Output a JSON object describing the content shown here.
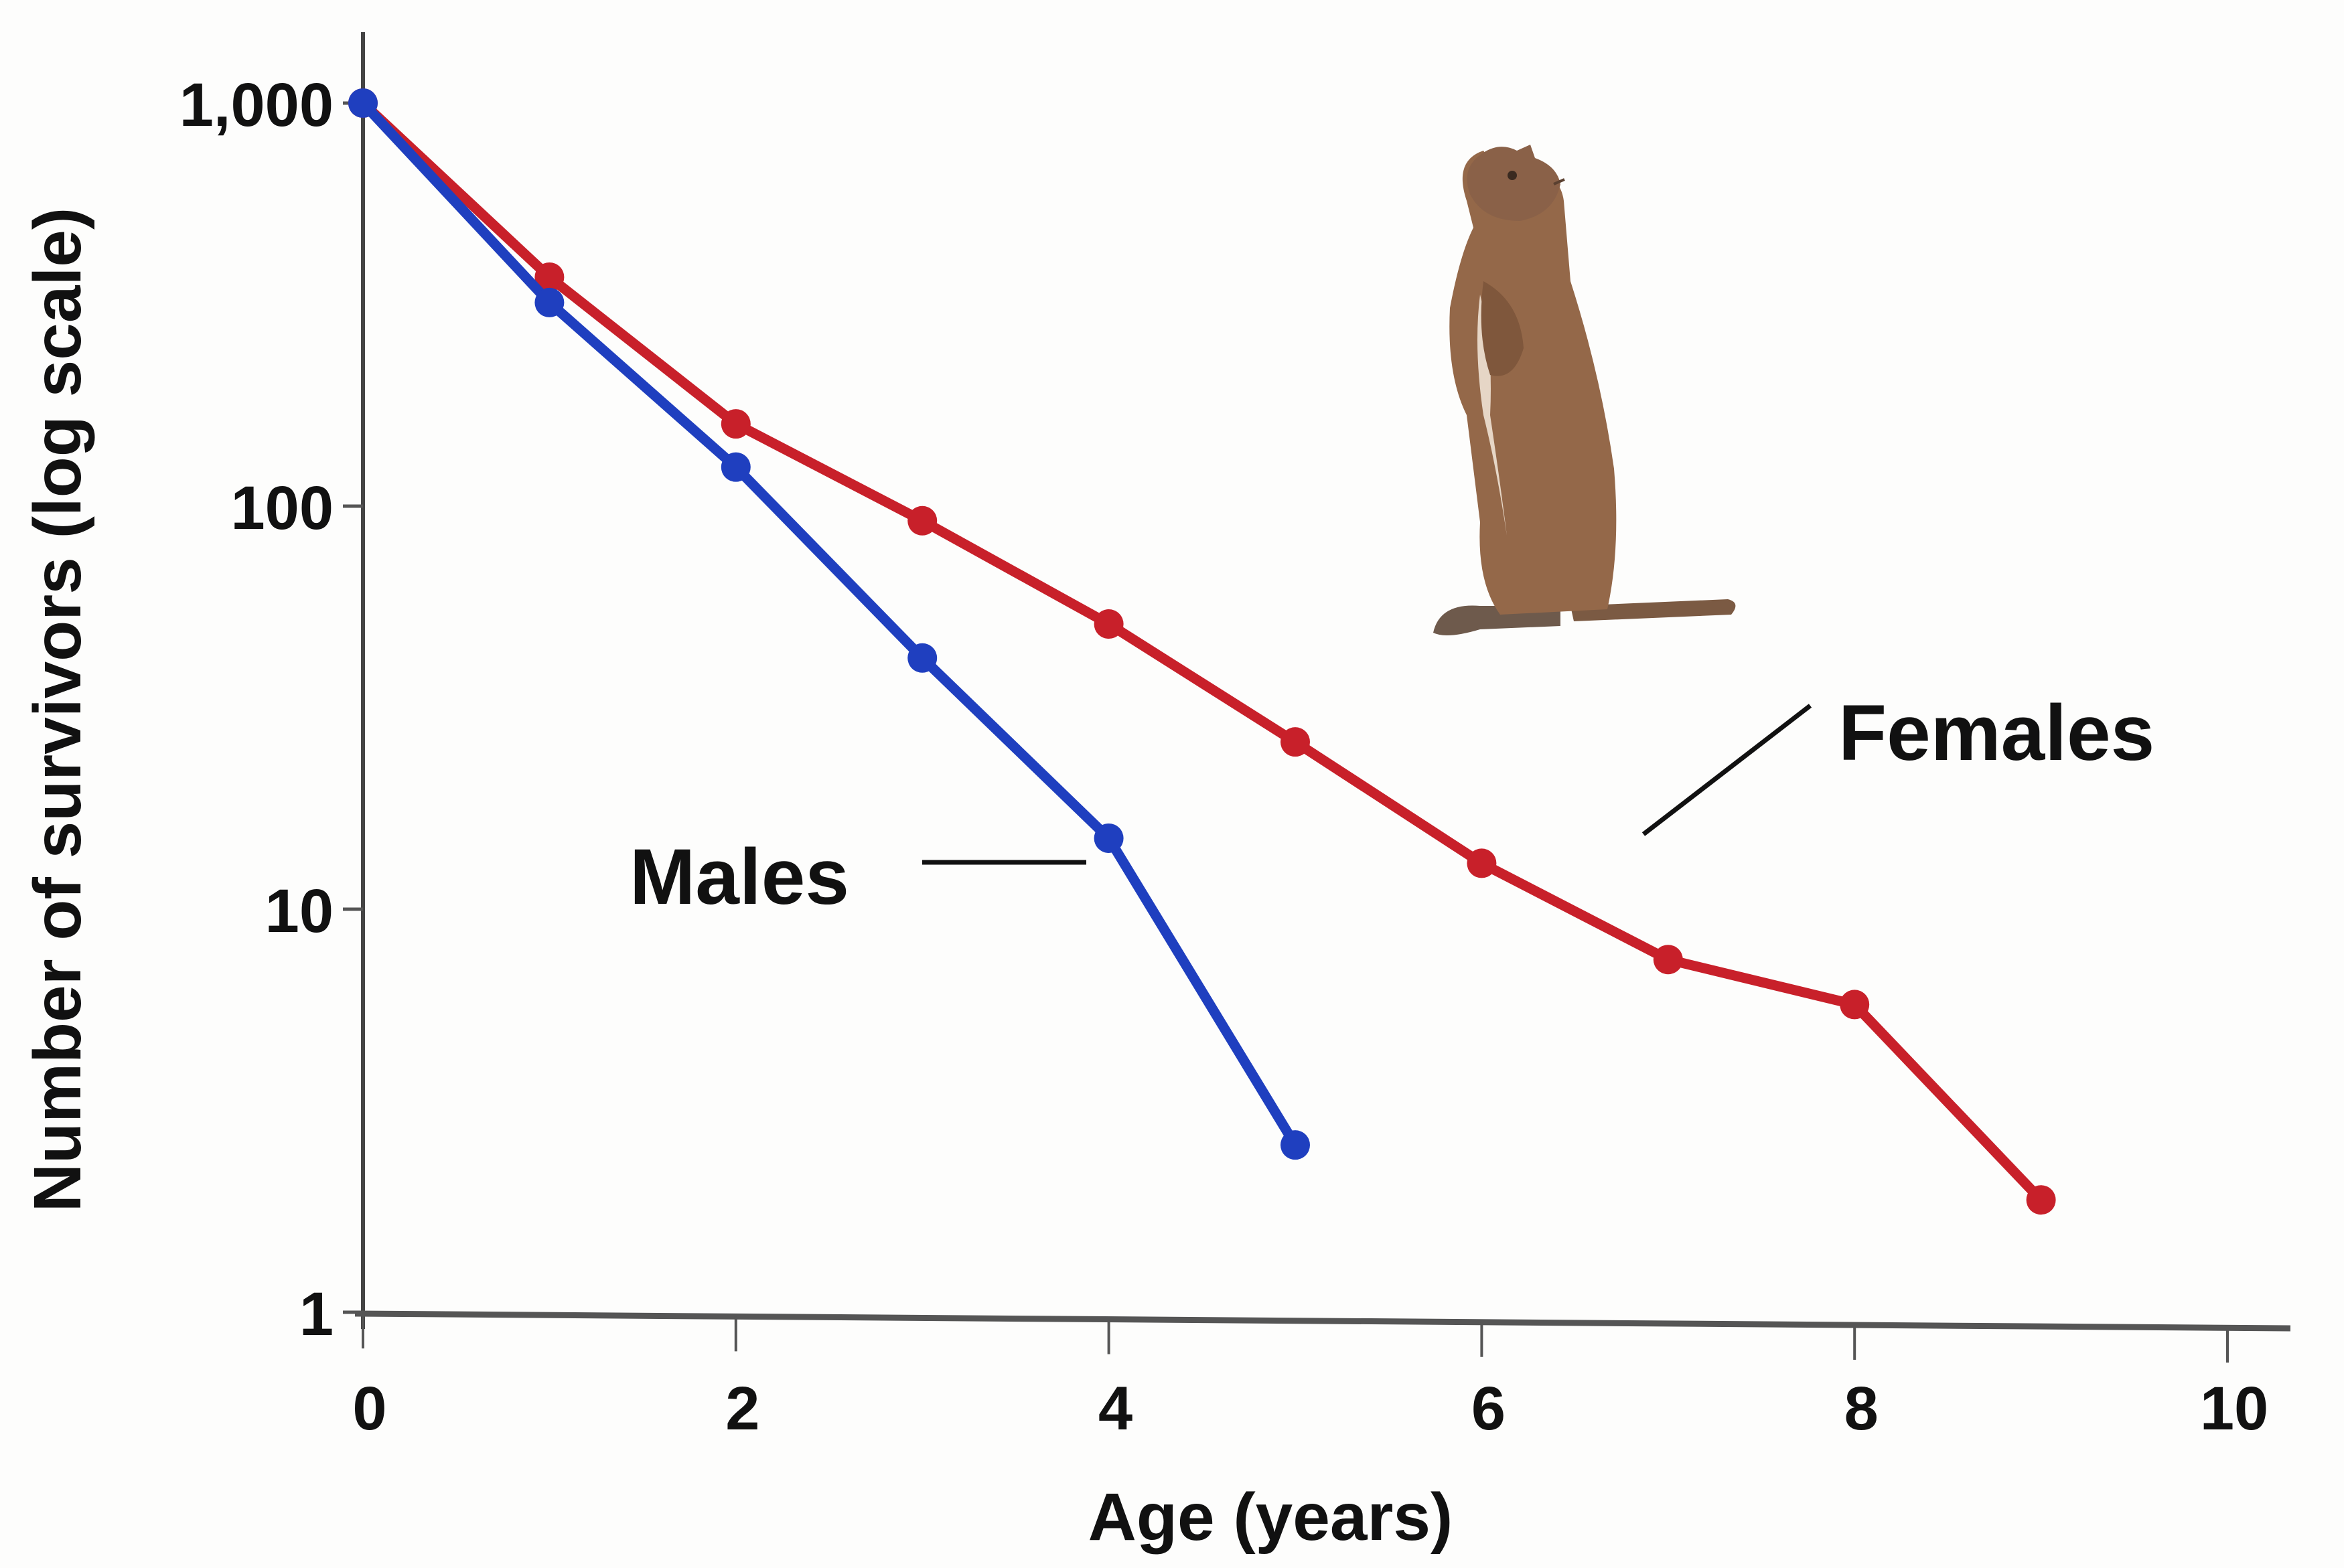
{
  "chart_data": {
    "type": "line",
    "title": "",
    "xlabel": "Age (years)",
    "ylabel": "Number of survivors (log scale)",
    "yscale": "log",
    "xlim": [
      0,
      10
    ],
    "ylim": [
      1,
      1000
    ],
    "x_ticks": [
      0,
      2,
      4,
      6,
      8,
      10
    ],
    "x_tick_labels": [
      "0",
      "2",
      "4",
      "6",
      "8",
      "10"
    ],
    "y_ticks": [
      1,
      10,
      100,
      1000
    ],
    "y_tick_labels": [
      "1",
      "10",
      "100",
      "1,000"
    ],
    "grid": false,
    "legend": "inline labels with leader lines",
    "series": [
      {
        "name": "Males",
        "color": "#1f3fbf",
        "x": [
          0,
          1,
          2,
          3,
          4,
          5
        ],
        "values": [
          1000,
          320,
          125,
          42,
          15,
          2.6
        ]
      },
      {
        "name": "Females",
        "color": "#c8202a",
        "x": [
          0,
          1,
          2,
          3,
          4,
          5,
          6,
          7,
          8,
          9
        ],
        "values": [
          1000,
          370,
          160,
          92,
          51,
          26,
          13,
          7.5,
          5.8,
          1.9
        ]
      }
    ],
    "annotations": [
      {
        "text": "Males",
        "points_to": "Males series near age 4"
      },
      {
        "text": "Females",
        "points_to": "Females series near age 7"
      },
      {
        "illustration": "ground squirrel standing upright"
      }
    ]
  },
  "labels": {
    "males": "Males",
    "females": "Females",
    "x_axis_title": "Age (years)",
    "y_axis_title": "Number of survivors (log scale)"
  }
}
